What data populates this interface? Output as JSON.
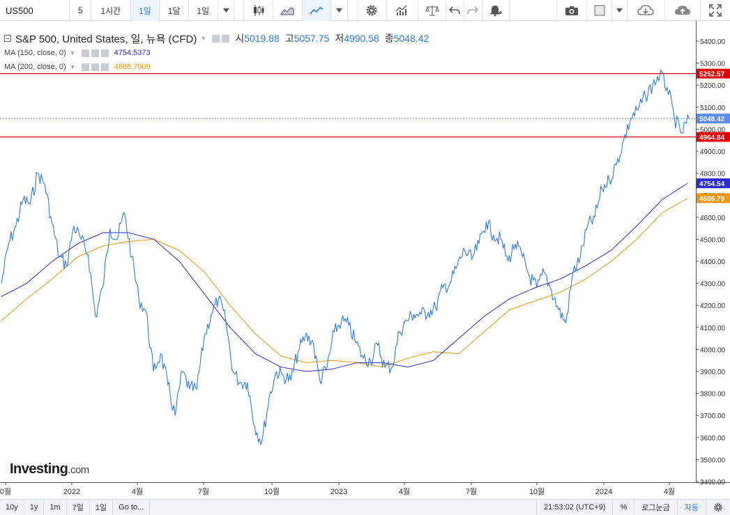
{
  "toolbar": {
    "symbol": "US500",
    "intervals": [
      "5",
      "1시간",
      "1일",
      "1달",
      "1일"
    ],
    "active_interval_index": 2
  },
  "legend": {
    "title": "S&P 500, United States, 일, 뉴욕 (CFD)",
    "open_label": "시",
    "open": "5019.88",
    "high_label": "고",
    "high": "5057.75",
    "low_label": "저",
    "low": "4990.58",
    "close_label": "종",
    "close": "5048.42",
    "ma150_label": "MA (150, close, 0)",
    "ma150_value": "4754.5373",
    "ma150_color": "#2b2bd8",
    "ma200_label": "MA (200, close, 0)",
    "ma200_value": "4686.7909",
    "ma200_color": "#f0960f"
  },
  "logo": {
    "text": "Investing",
    "suffix": ".com"
  },
  "bottom": {
    "ranges": [
      "10y",
      "1y",
      "1m",
      "7일",
      "1일"
    ],
    "goto": "Go to...",
    "time": "21:53:02 (UTC+9)",
    "percent": "%",
    "log": "로그눈금",
    "auto": "자동"
  },
  "chart_data": {
    "type": "line",
    "y_axis_ticks": [
      3400,
      3500,
      3600,
      3700,
      3800,
      3900,
      4000,
      4100,
      4200,
      4300,
      4400,
      4500,
      4600,
      4700,
      4800,
      4900,
      5000,
      5100,
      5200,
      5300,
      5400
    ],
    "y_range": [
      3400,
      5400
    ],
    "x_axis_labels": [
      "0월",
      "2022",
      "4월",
      "7월",
      "10월",
      "2023",
      "4월",
      "7월",
      "10월",
      "2024",
      "4월"
    ],
    "price_labels": [
      {
        "text": "5252.57",
        "value": 5252.57,
        "kind": "resistance",
        "color": "#e40000"
      },
      {
        "text": "5048.42",
        "value": 5048.42,
        "kind": "last",
        "color": "#5b8def"
      },
      {
        "text": "4964.84",
        "value": 4964.84,
        "kind": "support",
        "color": "#e40000"
      },
      {
        "text": "4754.54",
        "value": 4754.54,
        "kind": "ma150",
        "color": "#2b2bd8"
      },
      {
        "text": "4686.79",
        "value": 4686.79,
        "kind": "ma200",
        "color": "#f0960f"
      }
    ],
    "series": [
      {
        "name": "S&P 500",
        "color": "#2e7be6",
        "values": [
          4300,
          4480,
          4560,
          4680,
          4660,
          4800,
          4750,
          4570,
          4420,
          4380,
          4560,
          4500,
          4430,
          4150,
          4280,
          4550,
          4500,
          4620,
          4420,
          4230,
          4170,
          3900,
          3980,
          3840,
          3700,
          3900,
          3820,
          3820,
          4050,
          4160,
          4230,
          4130,
          3900,
          3850,
          3850,
          3650,
          3580,
          3780,
          3900,
          3880,
          3860,
          3990,
          4060,
          4040,
          3860,
          3920,
          4080,
          4130,
          4110,
          4030,
          3960,
          3950,
          4020,
          3920,
          3920,
          4080,
          4130,
          4160,
          4160,
          4170,
          4190,
          4280,
          4300,
          4380,
          4450,
          4410,
          4480,
          4580,
          4520,
          4500,
          4400,
          4480,
          4420,
          4330,
          4280,
          4350,
          4270,
          4180,
          4120,
          4350,
          4420,
          4560,
          4600,
          4730,
          4770,
          4840,
          4950,
          5050,
          5090,
          5150,
          5200,
          5250,
          5190,
          5050,
          4980,
          5048
        ]
      },
      {
        "name": "MA (150, close, 0)",
        "color": "#2b2bd8",
        "values": [
          4240,
          4300,
          4400,
          4480,
          4530,
          4530,
          4500,
          4400,
          4250,
          4100,
          3980,
          3920,
          3900,
          3910,
          3940,
          3940,
          3920,
          3950,
          4050,
          4150,
          4230,
          4280,
          4320,
          4380,
          4450,
          4560,
          4680,
          4754.54
        ]
      },
      {
        "name": "MA (200, close, 0)",
        "color": "#f0960f",
        "values": [
          4130,
          4230,
          4320,
          4420,
          4470,
          4490,
          4500,
          4450,
          4350,
          4200,
          4070,
          3970,
          3940,
          3950,
          3940,
          3920,
          3960,
          3990,
          3980,
          4080,
          4180,
          4220,
          4260,
          4320,
          4400,
          4500,
          4620,
          4686.79
        ]
      }
    ]
  }
}
